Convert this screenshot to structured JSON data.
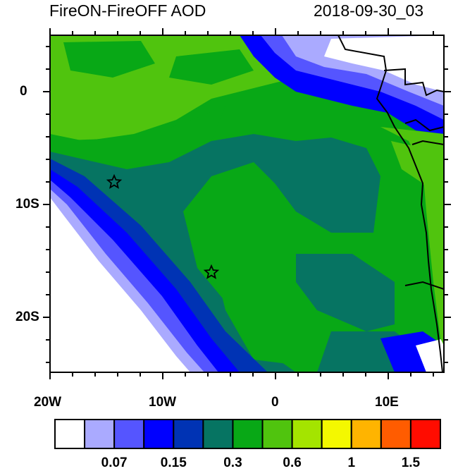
{
  "title_left": "FireON-FireOFF AOD",
  "title_right": "2018-09-30_03",
  "lon_labels": [
    "20W",
    "10W",
    "0",
    "10E"
  ],
  "lat_labels": [
    "0",
    "10S",
    "20S"
  ],
  "markers": [
    {
      "name": "star",
      "lon": -14.4,
      "lat": -8.0
    },
    {
      "name": "star",
      "lon": -5.7,
      "lat": -16.0
    }
  ],
  "colorbar": {
    "colors": [
      "#ffffff",
      "#aaaaff",
      "#5555ff",
      "#0000ff",
      "#0033b4",
      "#067462",
      "#08a816",
      "#50c40e",
      "#a4e400",
      "#f4f800",
      "#ffb400",
      "#ff5c00",
      "#ff0c00"
    ],
    "labels": [
      "0.07",
      "0.15",
      "0.3",
      "0.6",
      "1",
      "1.5"
    ]
  }
}
